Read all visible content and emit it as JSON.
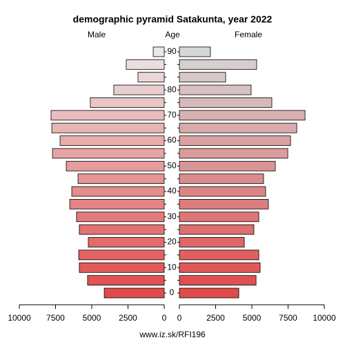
{
  "chart_data": {
    "type": "pyramid",
    "title": "demographic pyramid Satakunta, year 2022",
    "left_label": "Male",
    "center_label": "Age",
    "right_label": "Female",
    "source": "www.iz.sk/RFI196",
    "categories": [
      "0",
      null,
      "10",
      null,
      "20",
      null,
      "30",
      null,
      "40",
      null,
      "50",
      null,
      "60",
      null,
      "70",
      null,
      "80",
      null,
      null,
      "90"
    ],
    "series": [
      {
        "name": "Male",
        "colors": [
          "#e04a4a",
          "#ece6e6"
        ],
        "values": [
          4140,
          5290,
          5860,
          5900,
          5240,
          5860,
          6050,
          6520,
          6380,
          5950,
          6760,
          7710,
          7190,
          7760,
          7810,
          5100,
          3480,
          1810,
          2620,
          760
        ]
      },
      {
        "name": "Female",
        "colors": [
          "#e04a4a",
          "#d6d6d6"
        ],
        "values": [
          4100,
          5290,
          5570,
          5480,
          4480,
          5140,
          5480,
          6140,
          5950,
          5810,
          6620,
          7480,
          7670,
          8100,
          8670,
          6380,
          4950,
          3190,
          5330,
          2140
        ]
      }
    ],
    "xlim": [
      0,
      10000
    ],
    "xticks": [
      0,
      2500,
      5000,
      7500,
      10000
    ]
  }
}
